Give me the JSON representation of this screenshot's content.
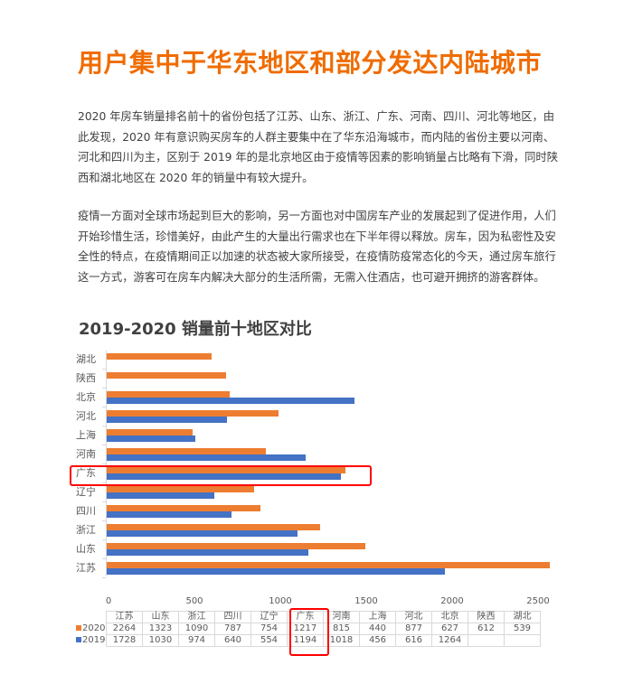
{
  "article": {
    "title": "用户集中于华东地区和部分发达内陆城市",
    "paragraphs": [
      "2020 年房车销量排名前十的省份包括了江苏、山东、浙江、广东、河南、四川、河北等地区，由此发现，2020 年有意识购买房车的人群主要集中在了华东沿海城市，而内陆的省份主要以河南、河北和四川为主，区别于 2019 年的是北京地区由于疫情等因素的影响销量占比略有下滑，同时陕西和湖北地区在 2020 年的销量中有较大提升。",
      "疫情一方面对全球市场起到巨大的影响，另一方面也对中国房车产业的发展起到了促进作用，人们开始珍惜生活，珍惜美好，由此产生的大量出行需求也在下半年得以释放。房车，因为私密性及安全性的特点，在疫情期间正以加速的状态被大家所接受，在疫情防疫常态化的今天，通过房车旅行这一方式，游客可在房车内解决大部分的生活所需，无需入住酒店，也可避开拥挤的游客群体。"
    ]
  },
  "colors": {
    "title": "#ef6c00",
    "series_2020": "#ed7d31",
    "series_2019": "#4472c4",
    "highlight": "#ff0000"
  },
  "chart_data": {
    "type": "bar",
    "orientation": "horizontal",
    "title": "2019-2020 销量前十地区对比",
    "xlabel": "",
    "ylabel": "",
    "xlim": [
      0,
      2600
    ],
    "x_ticks": [
      "0",
      "500",
      "1000",
      "1500",
      "2000",
      "2500"
    ],
    "grid": false,
    "legend_position": "data-table",
    "categories": [
      "江苏",
      "山东",
      "浙江",
      "四川",
      "辽宁",
      "广东",
      "河南",
      "上海",
      "河北",
      "北京",
      "陕西",
      "湖北"
    ],
    "series": [
      {
        "name": "2020",
        "color": "#ed7d31",
        "values": [
          2264,
          1323,
          1090,
          787,
          754,
          1217,
          815,
          440,
          877,
          627,
          612,
          539
        ]
      },
      {
        "name": "2019",
        "color": "#4472c4",
        "values": [
          1728,
          1030,
          974,
          640,
          554,
          1194,
          1018,
          456,
          616,
          1264,
          null,
          null
        ]
      }
    ],
    "rendered_bar_lengths_estimated": {
      "2020": [
        2579,
        1505,
        1242,
        895,
        858,
        1389,
        926,
        500,
        1000,
        716,
        695,
        611
      ],
      "2019": [
        1968,
        1174,
        1111,
        726,
        626,
        1363,
        1158,
        516,
        700,
        1442,
        null,
        null
      ]
    },
    "highlighted_category": "广东",
    "table": {
      "header": [
        "江苏",
        "山东",
        "浙江",
        "四川",
        "辽宁",
        "广东",
        "河南",
        "上海",
        "河北",
        "北京",
        "陕西",
        "湖北"
      ],
      "rows": [
        {
          "label": "2020",
          "values": [
            "2264",
            "1323",
            "1090",
            "787",
            "754",
            "1217",
            "815",
            "440",
            "877",
            "627",
            "612",
            "539"
          ]
        },
        {
          "label": "2019",
          "values": [
            "1728",
            "1030",
            "974",
            "640",
            "554",
            "1194",
            "1018",
            "456",
            "616",
            "1264",
            "",
            ""
          ]
        }
      ]
    }
  }
}
